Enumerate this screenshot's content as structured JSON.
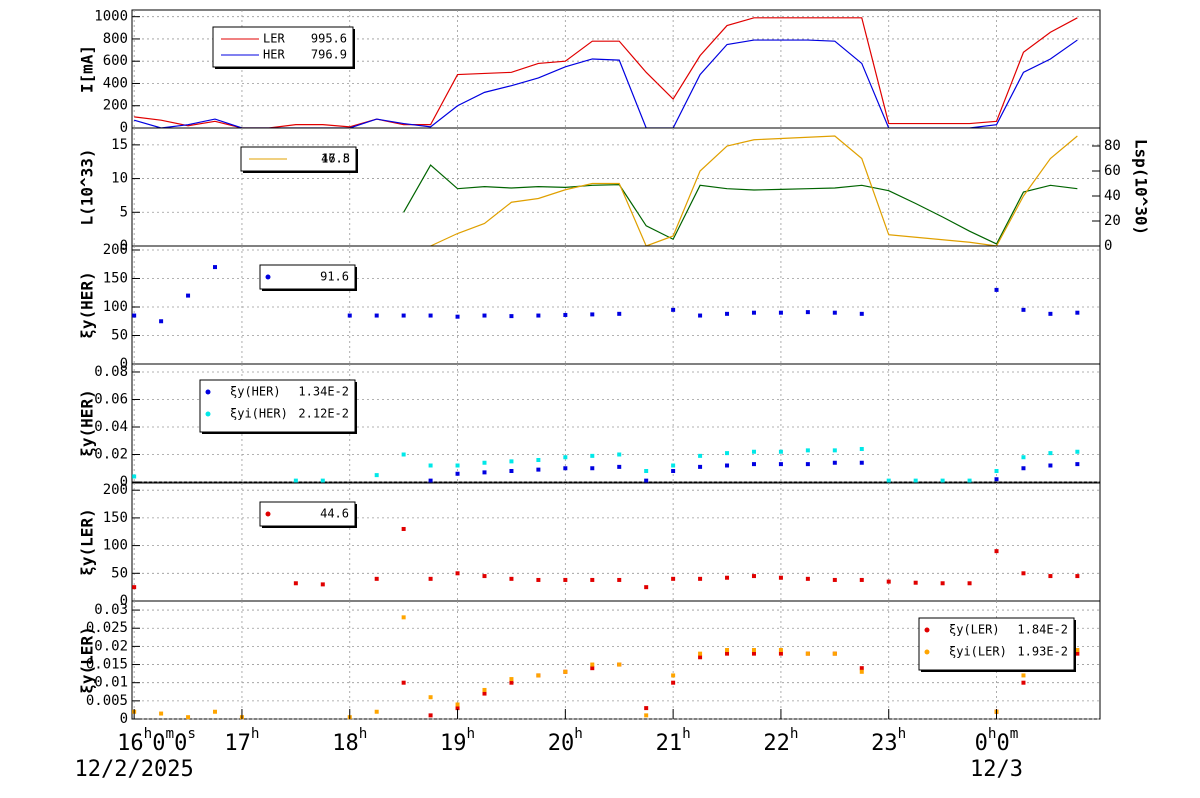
{
  "chart_data": [
    {
      "type": "line",
      "ylabel": "I[mA]",
      "xlim": [
        15.98,
        24.96
      ],
      "ylim": [
        0,
        1060
      ],
      "yticks": [
        0,
        200,
        400,
        600,
        800,
        1000
      ],
      "grid": true,
      "x": [
        16,
        16.25,
        16.5,
        16.75,
        17,
        17.25,
        17.5,
        17.75,
        18,
        18.25,
        18.5,
        18.75,
        19,
        19.25,
        19.5,
        19.75,
        20,
        20.25,
        20.5,
        20.75,
        21,
        21.25,
        21.5,
        21.75,
        22,
        22.25,
        22.5,
        22.75,
        23,
        23.25,
        23.5,
        23.75,
        24,
        24.25,
        24.5,
        24.75
      ],
      "series": [
        {
          "name": "LER",
          "legend_value": "995.6",
          "color": "#e00000",
          "values": [
            100,
            70,
            20,
            60,
            0,
            0,
            30,
            30,
            10,
            80,
            30,
            30,
            480,
            490,
            500,
            580,
            600,
            780,
            780,
            500,
            260,
            650,
            920,
            990,
            990,
            990,
            990,
            990,
            40,
            40,
            40,
            40,
            60,
            680,
            860,
            990
          ]
        },
        {
          "name": "HER",
          "legend_value": "796.9",
          "color": "#0000e0",
          "values": [
            70,
            0,
            30,
            80,
            0,
            0,
            0,
            0,
            0,
            80,
            40,
            10,
            200,
            320,
            380,
            450,
            550,
            620,
            610,
            0,
            0,
            480,
            750,
            790,
            790,
            790,
            780,
            580,
            0,
            0,
            0,
            0,
            30,
            500,
            620,
            790
          ]
        }
      ]
    },
    {
      "type": "line",
      "ylabel": "L(10^33)",
      "y2label": "Lsp(10^30)",
      "xlim": [
        15.98,
        24.96
      ],
      "ylim": [
        0,
        17.5
      ],
      "yticks": [
        0,
        5,
        10,
        15
      ],
      "y2lim": [
        0,
        94.4
      ],
      "y2ticks": [
        0,
        20,
        40,
        60,
        80
      ],
      "grid": true,
      "x": [
        16,
        16.25,
        16.5,
        16.75,
        17,
        17.25,
        17.5,
        17.75,
        18,
        18.25,
        18.5,
        18.75,
        19,
        19.25,
        19.5,
        19.75,
        20,
        20.25,
        20.5,
        20.75,
        21,
        21.25,
        21.5,
        21.75,
        22,
        22.25,
        22.5,
        22.75,
        23,
        23.25,
        23.5,
        23.75,
        24,
        24.25,
        24.5,
        24.75
      ],
      "series": [
        {
          "legend_value": "17.5",
          "color": "#006400",
          "values": [
            null,
            null,
            null,
            null,
            null,
            null,
            null,
            null,
            null,
            null,
            5,
            12,
            8.5,
            8.8,
            8.6,
            8.8,
            8.7,
            9,
            9.1,
            3,
            1,
            9,
            8.5,
            8.3,
            8.4,
            8.5,
            8.6,
            9,
            8.2,
            6.3,
            4.3,
            2.2,
            0.3,
            8,
            9,
            8.5
          ]
        },
        {
          "legend_value": "46.8",
          "color": "#e0a000",
          "axis": "y2",
          "values": [
            null,
            null,
            null,
            null,
            null,
            null,
            null,
            null,
            null,
            null,
            null,
            0,
            10,
            18,
            35,
            38,
            45,
            50,
            50,
            0,
            8,
            60,
            80,
            85,
            86,
            87,
            88,
            70,
            9,
            7,
            5,
            3,
            0,
            40,
            70,
            88
          ]
        }
      ]
    },
    {
      "type": "scatter",
      "ylabel": "ξy(HER)",
      "xlim": [
        15.98,
        24.96
      ],
      "ylim": [
        0,
        207
      ],
      "yticks": [
        0,
        50,
        100,
        150,
        200
      ],
      "grid": true,
      "x": [
        16,
        16.25,
        16.5,
        16.75,
        17,
        17.25,
        17.5,
        17.75,
        18,
        18.25,
        18.5,
        18.75,
        19,
        19.25,
        19.5,
        19.75,
        20,
        20.25,
        20.5,
        20.75,
        21,
        21.25,
        21.5,
        21.75,
        22,
        22.25,
        22.5,
        22.75,
        23,
        23.25,
        23.5,
        23.75,
        24,
        24.25,
        24.5,
        24.75
      ],
      "series": [
        {
          "legend_value": "91.6",
          "color": "#0000e0",
          "values": [
            85,
            75,
            120,
            170,
            null,
            null,
            null,
            null,
            85,
            85,
            85,
            85,
            83,
            85,
            84,
            85,
            86,
            87,
            88,
            null,
            95,
            85,
            88,
            90,
            90,
            91,
            90,
            88,
            null,
            null,
            null,
            null,
            130,
            95,
            88,
            90
          ]
        }
      ]
    },
    {
      "type": "scatter",
      "ylabel": "ξy(HER)",
      "xlim": [
        15.98,
        24.96
      ],
      "ylim": [
        0,
        0.0858
      ],
      "yticks": [
        0,
        0.02,
        0.04,
        0.06,
        0.08
      ],
      "grid": true,
      "x": [
        16,
        16.25,
        16.5,
        16.75,
        17,
        17.25,
        17.5,
        17.75,
        18,
        18.25,
        18.5,
        18.75,
        19,
        19.25,
        19.5,
        19.75,
        20,
        20.25,
        20.5,
        20.75,
        21,
        21.25,
        21.5,
        21.75,
        22,
        22.25,
        22.5,
        22.75,
        23,
        23.25,
        23.5,
        23.75,
        24,
        24.25,
        24.5,
        24.75
      ],
      "series": [
        {
          "name": "ξy(HER)",
          "legend_value": "1.34E-2",
          "color": "#0000e0",
          "values": [
            null,
            null,
            null,
            null,
            null,
            null,
            null,
            null,
            null,
            null,
            null,
            0.001,
            0.006,
            0.007,
            0.008,
            0.009,
            0.01,
            0.01,
            0.011,
            0.001,
            0.008,
            0.011,
            0.012,
            0.013,
            0.013,
            0.013,
            0.014,
            0.014,
            null,
            null,
            null,
            null,
            0.002,
            0.01,
            0.012,
            0.013
          ]
        },
        {
          "name": "ξyi(HER)",
          "legend_value": "2.12E-2",
          "color": "#00e8e8",
          "values": [
            0.004,
            null,
            null,
            null,
            null,
            null,
            0.001,
            0.001,
            null,
            0.005,
            0.02,
            0.012,
            0.012,
            0.014,
            0.015,
            0.016,
            0.018,
            0.019,
            0.02,
            0.008,
            0.012,
            0.019,
            0.021,
            0.022,
            0.022,
            0.023,
            0.023,
            0.024,
            0.001,
            0.001,
            0.001,
            0.001,
            0.008,
            0.018,
            0.021,
            0.022
          ]
        }
      ]
    },
    {
      "type": "scatter",
      "ylabel": "ξy(LER)",
      "xlim": [
        15.98,
        24.96
      ],
      "ylim": [
        0,
        213
      ],
      "yticks": [
        0,
        50,
        100,
        150,
        200
      ],
      "grid": true,
      "x": [
        16,
        16.25,
        16.5,
        16.75,
        17,
        17.25,
        17.5,
        17.75,
        18,
        18.25,
        18.5,
        18.75,
        19,
        19.25,
        19.5,
        19.75,
        20,
        20.25,
        20.5,
        20.75,
        21,
        21.25,
        21.5,
        21.75,
        22,
        22.25,
        22.5,
        22.75,
        23,
        23.25,
        23.5,
        23.75,
        24,
        24.25,
        24.5,
        24.75
      ],
      "series": [
        {
          "legend_value": "44.6",
          "color": "#e00000",
          "values": [
            25,
            null,
            null,
            null,
            null,
            null,
            32,
            30,
            null,
            40,
            130,
            40,
            50,
            45,
            40,
            38,
            38,
            38,
            38,
            25,
            40,
            40,
            42,
            45,
            42,
            40,
            38,
            38,
            35,
            33,
            32,
            32,
            90,
            50,
            45,
            45
          ]
        }
      ]
    },
    {
      "type": "scatter",
      "ylabel": "ξy(LER)",
      "xlim": [
        15.98,
        24.96
      ],
      "ylim": [
        0,
        0.0325
      ],
      "yticks": [
        0,
        0.005,
        0.01,
        0.015,
        0.02,
        0.025,
        0.03
      ],
      "grid": true,
      "x": [
        16,
        16.25,
        16.5,
        16.75,
        17,
        17.25,
        17.5,
        17.75,
        18,
        18.25,
        18.5,
        18.75,
        19,
        19.25,
        19.5,
        19.75,
        20,
        20.25,
        20.5,
        20.75,
        21,
        21.25,
        21.5,
        21.75,
        22,
        22.25,
        22.5,
        22.75,
        23,
        23.25,
        23.5,
        23.75,
        24,
        24.25,
        24.5,
        24.75
      ],
      "xticks": [
        {
          "value": 16,
          "label": "16h0m0s"
        },
        {
          "value": 17,
          "label": "17h"
        },
        {
          "value": 18,
          "label": "18h"
        },
        {
          "value": 19,
          "label": "19h"
        },
        {
          "value": 20,
          "label": "20h"
        },
        {
          "value": 21,
          "label": "21h"
        },
        {
          "value": 22,
          "label": "22h"
        },
        {
          "value": 23,
          "label": "23h"
        },
        {
          "value": 24,
          "label": "0h0m"
        }
      ],
      "x_date_labels": [
        {
          "value": 16,
          "label": "12/2/2025"
        },
        {
          "value": 24,
          "label": "12/3"
        }
      ],
      "series": [
        {
          "name": "ξy(LER)",
          "legend_value": "1.84E-2",
          "color": "#e00000",
          "values": [
            null,
            null,
            null,
            null,
            null,
            null,
            null,
            null,
            null,
            null,
            0.01,
            0.001,
            0.003,
            0.007,
            0.01,
            0.012,
            0.013,
            0.014,
            0.015,
            0.003,
            0.01,
            0.017,
            0.018,
            0.018,
            0.018,
            0.018,
            0.018,
            0.014,
            null,
            null,
            null,
            null,
            0.002,
            0.01,
            0.016,
            0.018
          ]
        },
        {
          "name": "ξyi(LER)",
          "legend_value": "1.93E-2",
          "color": "#ffa500",
          "values": [
            0.002,
            0.0015,
            0.0005,
            0.002,
            0.0005,
            null,
            null,
            null,
            0.0005,
            0.002,
            0.028,
            0.006,
            0.004,
            0.008,
            0.011,
            0.012,
            0.013,
            0.015,
            0.015,
            0.001,
            0.012,
            0.018,
            0.019,
            0.019,
            0.019,
            0.018,
            0.018,
            0.013,
            null,
            null,
            null,
            null,
            0.002,
            0.012,
            0.017,
            0.019
          ]
        }
      ]
    }
  ]
}
